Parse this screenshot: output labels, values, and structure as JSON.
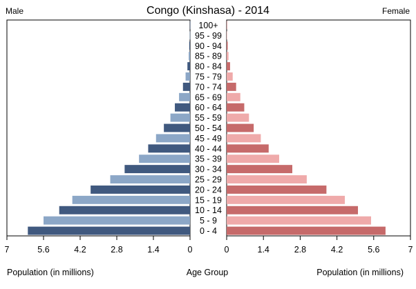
{
  "chart_data": {
    "type": "bar",
    "orientation": "horizontal-population-pyramid",
    "title": "Congo (Kinshasa) - 2014",
    "left_label": "Male",
    "right_label": "Female",
    "left_axis_label": "Population (in millions)",
    "center_axis_label": "Age Group",
    "right_axis_label": "Population (in millions)",
    "xlim": [
      0,
      7
    ],
    "ticks": [
      "0",
      "1.4",
      "2.8",
      "4.2",
      "5.6",
      "7"
    ],
    "left_ticks": [
      "7",
      "5.6",
      "4.2",
      "2.8",
      "1.4",
      "0"
    ],
    "categories": [
      "0 - 4",
      "5 - 9",
      "10 - 14",
      "15 - 19",
      "20 - 24",
      "25 - 29",
      "30 - 34",
      "35 - 39",
      "40 - 44",
      "45 - 49",
      "50 - 54",
      "55 - 59",
      "60 - 64",
      "65 - 69",
      "70 - 74",
      "75 - 79",
      "80 - 84",
      "85 - 89",
      "90 - 94",
      "95 - 99",
      "100+"
    ],
    "series": [
      {
        "name": "Male",
        "values": [
          6.2,
          5.6,
          5.0,
          4.5,
          3.8,
          3.05,
          2.5,
          1.95,
          1.6,
          1.3,
          1.0,
          0.75,
          0.58,
          0.42,
          0.27,
          0.17,
          0.1,
          0.05,
          0.03,
          0.01,
          0.005
        ]
      },
      {
        "name": "Female",
        "values": [
          6.05,
          5.5,
          5.0,
          4.5,
          3.8,
          3.05,
          2.5,
          2.0,
          1.6,
          1.3,
          1.03,
          0.85,
          0.67,
          0.52,
          0.36,
          0.23,
          0.13,
          0.07,
          0.04,
          0.015,
          0.005
        ]
      }
    ],
    "colors": {
      "male_dark": "#40597f",
      "male_light": "#8ca7c7",
      "female_dark": "#c66a6a",
      "female_light": "#efaaaa",
      "frame": "#000000"
    },
    "grid": false
  }
}
